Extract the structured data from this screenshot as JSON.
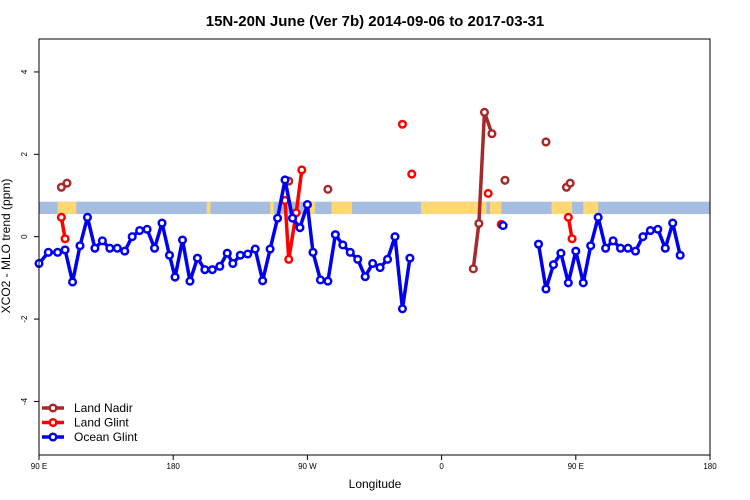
{
  "chart_data": {
    "type": "line",
    "title": "15N-20N June (Ver 7b)   2014-09-06 to 2017-03-31",
    "xlabel": "Longitude",
    "ylabel": "XCO2 - MLO trend (ppm)",
    "xlim": [
      -90,
      270
    ],
    "ylim": [
      -5.3,
      4.8
    ],
    "x_ticks": [
      {
        "value": -90,
        "label": "90 E"
      },
      {
        "value": -18,
        "label": "180"
      },
      {
        "value": 54,
        "label": "90 W"
      },
      {
        "value": 126,
        "label": "0"
      },
      {
        "value": 198,
        "label": "90 E"
      },
      {
        "value": 270,
        "label": "180"
      }
    ],
    "y_ticks": [
      {
        "value": -4,
        "label": "-4"
      },
      {
        "value": -2,
        "label": "-2"
      },
      {
        "value": 0,
        "label": "0"
      },
      {
        "value": 2,
        "label": "2"
      },
      {
        "value": 4,
        "label": "4"
      }
    ],
    "legend_position": "bottom-left",
    "land_band": {
      "y_range": [
        0.55,
        0.85
      ],
      "ocean_color": "#a4bde0",
      "land_color": "#ffd873",
      "land_segments": [
        [
          -80,
          -76
        ],
        [
          -76,
          -70
        ],
        [
          0,
          2
        ],
        [
          34,
          36
        ],
        [
          52,
          58
        ],
        [
          67,
          78
        ],
        [
          115,
          150
        ],
        [
          152,
          158
        ],
        [
          185,
          196
        ],
        [
          202,
          210
        ]
      ]
    },
    "series": [
      {
        "name": "Land Nadir",
        "color": "#a52a2a",
        "points": [
          {
            "x": -78,
            "y": 1.2
          },
          {
            "x": -75,
            "y": 1.3
          },
          {
            "x": 44,
            "y": 1.35
          },
          {
            "x": 65,
            "y": 1.15
          },
          {
            "x": 143,
            "y": -0.78
          },
          {
            "x": 146,
            "y": 0.32
          },
          {
            "x": 149,
            "y": 3.02
          },
          {
            "x": 153,
            "y": 2.5
          },
          {
            "x": 160,
            "y": 1.37
          },
          {
            "x": 182,
            "y": 2.3
          },
          {
            "x": 193,
            "y": 1.2
          },
          {
            "x": 195,
            "y": 1.3
          }
        ],
        "lines": [
          [
            -78,
            -75
          ],
          [
            143,
            146,
            149,
            153
          ],
          [
            193,
            195
          ]
        ]
      },
      {
        "name": "Land Glint",
        "color": "#ff0000",
        "points": [
          {
            "x": -78,
            "y": 0.47
          },
          {
            "x": -76,
            "y": -0.05
          },
          {
            "x": 42,
            "y": 0.88
          },
          {
            "x": 44,
            "y": -0.55
          },
          {
            "x": 48,
            "y": 0.58
          },
          {
            "x": 51,
            "y": 1.62
          },
          {
            "x": 105,
            "y": 2.73
          },
          {
            "x": 110,
            "y": 1.52
          },
          {
            "x": 151,
            "y": 1.05
          },
          {
            "x": 158,
            "y": 0.3
          },
          {
            "x": 194,
            "y": 0.47
          },
          {
            "x": 196,
            "y": -0.05
          }
        ],
        "lines": [
          [
            -78,
            -76
          ],
          [
            42,
            44,
            48,
            51
          ],
          [
            194,
            196
          ]
        ]
      },
      {
        "name": "Ocean Glint",
        "color": "#0000ee",
        "points": [
          {
            "x": -90,
            "y": -0.65
          },
          {
            "x": -85,
            "y": -0.38
          },
          {
            "x": -80,
            "y": -0.38
          },
          {
            "x": -76,
            "y": -0.32
          },
          {
            "x": -72,
            "y": -1.1
          },
          {
            "x": -68,
            "y": -0.22
          },
          {
            "x": -64,
            "y": 0.47
          },
          {
            "x": -60,
            "y": -0.28
          },
          {
            "x": -56,
            "y": -0.1
          },
          {
            "x": -52,
            "y": -0.28
          },
          {
            "x": -48,
            "y": -0.28
          },
          {
            "x": -44,
            "y": -0.35
          },
          {
            "x": -40,
            "y": 0.0
          },
          {
            "x": -36,
            "y": 0.15
          },
          {
            "x": -32,
            "y": 0.18
          },
          {
            "x": -28,
            "y": -0.28
          },
          {
            "x": -24,
            "y": 0.33
          },
          {
            "x": -20,
            "y": -0.45
          },
          {
            "x": -17,
            "y": -0.98
          },
          {
            "x": -13,
            "y": -0.08
          },
          {
            "x": -9,
            "y": -1.08
          },
          {
            "x": -5,
            "y": -0.52
          },
          {
            "x": -1,
            "y": -0.8
          },
          {
            "x": 3,
            "y": -0.8
          },
          {
            "x": 7,
            "y": -0.72
          },
          {
            "x": 11,
            "y": -0.4
          },
          {
            "x": 14,
            "y": -0.65
          },
          {
            "x": 18,
            "y": -0.45
          },
          {
            "x": 22,
            "y": -0.42
          },
          {
            "x": 26,
            "y": -0.3
          },
          {
            "x": 30,
            "y": -1.07
          },
          {
            "x": 34,
            "y": -0.3
          },
          {
            "x": 38,
            "y": 0.45
          },
          {
            "x": 42,
            "y": 1.38
          },
          {
            "x": 46,
            "y": 0.45
          },
          {
            "x": 50,
            "y": 0.22
          },
          {
            "x": 54,
            "y": 0.78
          },
          {
            "x": 57,
            "y": -0.38
          },
          {
            "x": 61,
            "y": -1.05
          },
          {
            "x": 65,
            "y": -1.08
          },
          {
            "x": 69,
            "y": 0.05
          },
          {
            "x": 73,
            "y": -0.2
          },
          {
            "x": 77,
            "y": -0.38
          },
          {
            "x": 81,
            "y": -0.55
          },
          {
            "x": 85,
            "y": -0.97
          },
          {
            "x": 89,
            "y": -0.65
          },
          {
            "x": 93,
            "y": -0.75
          },
          {
            "x": 97,
            "y": -0.55
          },
          {
            "x": 101,
            "y": 0.0
          },
          {
            "x": 105,
            "y": -1.75
          },
          {
            "x": 109,
            "y": -0.52
          },
          {
            "x": 159,
            "y": 0.27
          },
          {
            "x": 178,
            "y": -0.18
          },
          {
            "x": 182,
            "y": -1.27
          },
          {
            "x": 186,
            "y": -0.68
          },
          {
            "x": 190,
            "y": -0.4
          },
          {
            "x": 194,
            "y": -1.12
          },
          {
            "x": 198,
            "y": -0.35
          },
          {
            "x": 202,
            "y": -1.12
          },
          {
            "x": 206,
            "y": -0.22
          },
          {
            "x": 210,
            "y": 0.47
          },
          {
            "x": 214,
            "y": -0.28
          },
          {
            "x": 218,
            "y": -0.1
          },
          {
            "x": 222,
            "y": -0.28
          },
          {
            "x": 226,
            "y": -0.28
          },
          {
            "x": 230,
            "y": -0.35
          },
          {
            "x": 234,
            "y": 0.0
          },
          {
            "x": 238,
            "y": 0.15
          },
          {
            "x": 242,
            "y": 0.18
          },
          {
            "x": 246,
            "y": -0.28
          },
          {
            "x": 250,
            "y": 0.33
          },
          {
            "x": 254,
            "y": -0.45
          }
        ],
        "lines": [
          [
            -90,
            -85,
            -80,
            -76,
            -72,
            -68,
            -64,
            -60,
            -56,
            -52,
            -48,
            -44,
            -40,
            -36,
            -32,
            -28,
            -24,
            -20,
            -17,
            -13,
            -9,
            -5,
            -1,
            3,
            7,
            11,
            14,
            18,
            22,
            26,
            30,
            34,
            38,
            42,
            46,
            50,
            54,
            57,
            61,
            65,
            69,
            73,
            77,
            81,
            85,
            89,
            93,
            97,
            101,
            105,
            109
          ],
          [
            178,
            182,
            186,
            190,
            194,
            198,
            202,
            206,
            210,
            214,
            218,
            222,
            226,
            230,
            234,
            238,
            242,
            246,
            250,
            254
          ]
        ]
      }
    ]
  }
}
